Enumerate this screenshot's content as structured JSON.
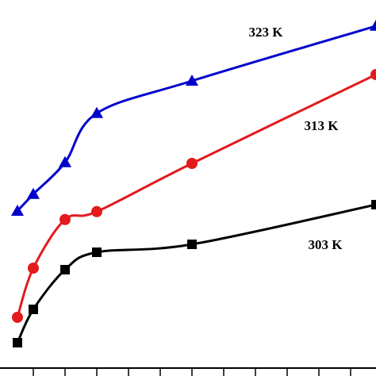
{
  "chart_data": {
    "type": "line",
    "x": [
      0.5,
      1,
      2,
      3,
      6,
      11.8
    ],
    "series": [
      {
        "name": "303 K",
        "color": "#000000",
        "marker": "square",
        "values": [
          0.8,
          1.85,
          3.1,
          3.65,
          3.9,
          5.15
        ]
      },
      {
        "name": "313 K",
        "color": "#e31a1c",
        "marker": "circle",
        "values": [
          1.6,
          3.15,
          4.68,
          4.93,
          6.45,
          9.25
        ]
      },
      {
        "name": "323 K",
        "color": "#0000cc",
        "marker": "triangle",
        "values": [
          4.95,
          5.48,
          6.48,
          8.03,
          9.05,
          10.78
        ]
      }
    ],
    "xlim": [
      -0.05,
      11.8
    ],
    "ylim": [
      0,
      11.6
    ],
    "xticks": [
      1,
      2,
      3,
      4,
      5,
      6,
      7,
      8,
      9,
      10,
      11
    ]
  }
}
